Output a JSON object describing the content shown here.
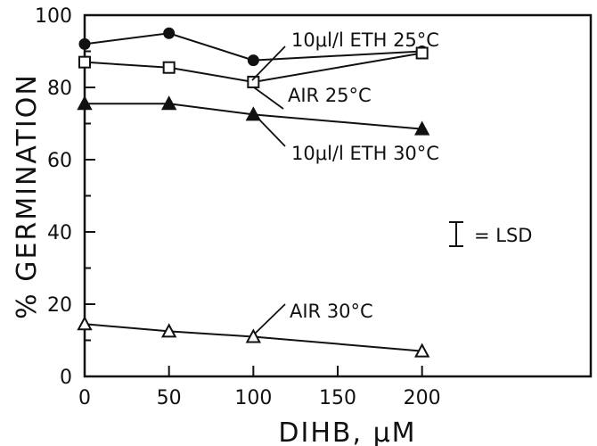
{
  "chart_data": {
    "type": "line",
    "title": "",
    "xlabel": "DIHB, μM",
    "ylabel": "% GERMINATION",
    "xlim": [
      0,
      300
    ],
    "ylim": [
      0,
      100
    ],
    "x_ticks": [
      0,
      50,
      100,
      150,
      200
    ],
    "y_ticks": [
      0,
      20,
      40,
      60,
      80,
      100
    ],
    "legend": "inline labels",
    "series": [
      {
        "name": "10μl/l ETH 25°C",
        "marker": "filled-circle",
        "x": [
          0,
          50,
          100,
          200
        ],
        "y": [
          92,
          95,
          87.5,
          90
        ]
      },
      {
        "name": "AIR 25°C",
        "marker": "open-square",
        "x": [
          0,
          50,
          100,
          200
        ],
        "y": [
          87,
          85.5,
          81.5,
          89.5
        ]
      },
      {
        "name": "10μl/l ETH 30°C",
        "marker": "filled-triangle",
        "x": [
          0,
          50,
          100,
          200
        ],
        "y": [
          75.5,
          75.5,
          72.5,
          68.5
        ]
      },
      {
        "name": "AIR 30°C",
        "marker": "open-triangle",
        "x": [
          0,
          50,
          100,
          200
        ],
        "y": [
          14.5,
          12.5,
          11,
          7
        ]
      }
    ],
    "annotation_lsd": "= LSD"
  }
}
